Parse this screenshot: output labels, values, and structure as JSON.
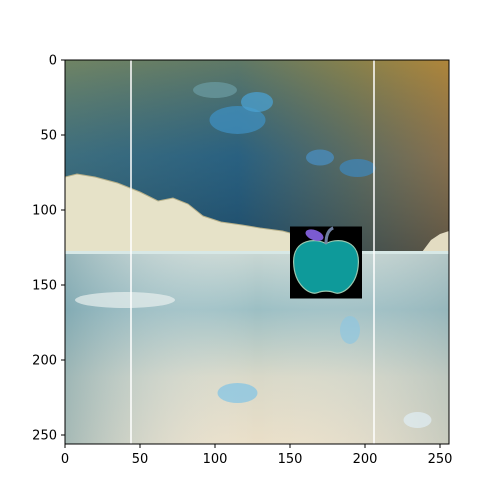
{
  "figure": {
    "x_axis": {
      "ticks": [
        0,
        50,
        100,
        150,
        200,
        250
      ],
      "lim": [
        0,
        256
      ]
    },
    "y_axis": {
      "ticks": [
        0,
        50,
        100,
        150,
        200,
        250
      ],
      "lim": [
        256,
        0
      ],
      "inverted": true
    },
    "vertical_lines": [
      {
        "x": 44,
        "color": "#ffffff"
      },
      {
        "x": 206,
        "color": "#ffffff"
      }
    ],
    "image_content": {
      "scene": "color-inverted lake landscape with mountains and sky",
      "inset": {
        "icon": "apple-icon",
        "x_range": [
          150,
          198
        ],
        "y_range": [
          111,
          159
        ],
        "background_color": "#000000",
        "apple_color": "#0e9a9a",
        "leaf_color": "#7b5bd0"
      }
    }
  }
}
